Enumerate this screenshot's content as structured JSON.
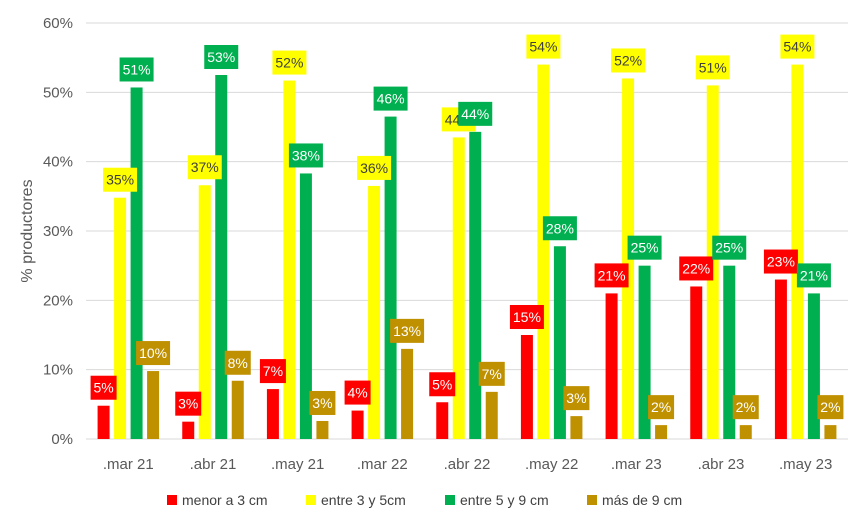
{
  "chart_data": {
    "type": "bar",
    "ylabel": "% productores",
    "xlabel": "",
    "ylim": [
      0,
      60
    ],
    "yticks": [
      "0%",
      "10%",
      "20%",
      "30%",
      "40%",
      "50%",
      "60%"
    ],
    "grid": true,
    "legend_position": "bottom",
    "categories": [
      ".mar 21",
      ".abr 21",
      ".may 21",
      ".mar 22",
      ".abr 22",
      ".may 22",
      ".mar 23",
      ".abr 23",
      ".may 23"
    ],
    "series": [
      {
        "name": "menor a 3 cm",
        "color": "#ff0000",
        "label_text_color": "#ffffff",
        "values": [
          4.8,
          2.5,
          7.2,
          4.1,
          5.3,
          15,
          21,
          22,
          23
        ],
        "labels": [
          "5%",
          "3%",
          "7%",
          "4%",
          "5%",
          "15%",
          "21%",
          "22%",
          "23%"
        ]
      },
      {
        "name": "entre 3 y 5cm",
        "color": "#ffff00",
        "label_text_color": "#404040",
        "values": [
          34.8,
          36.6,
          51.7,
          36.5,
          43.5,
          54,
          52,
          51,
          54
        ],
        "labels": [
          "35%",
          "37%",
          "52%",
          "36%",
          "44%",
          "54%",
          "52%",
          "51%",
          "54%"
        ]
      },
      {
        "name": "entre 5 y 9 cm",
        "color": "#00b050",
        "label_text_color": "#ffffff",
        "values": [
          50.7,
          52.5,
          38.3,
          46.5,
          44.3,
          27.8,
          25,
          25,
          21
        ],
        "labels": [
          "51%",
          "53%",
          "38%",
          "46%",
          "44%",
          "28%",
          "25%",
          "25%",
          "21%"
        ]
      },
      {
        "name": "más de 9 cm",
        "color": "#bf9000",
        "label_text_color": "#ffffff",
        "values": [
          9.8,
          8.4,
          2.6,
          13,
          6.8,
          3.3,
          2,
          2,
          2
        ],
        "labels": [
          "10%",
          "8%",
          "3%",
          "13%",
          "7%",
          "3%",
          "2%",
          "2%",
          "2%"
        ]
      }
    ]
  }
}
